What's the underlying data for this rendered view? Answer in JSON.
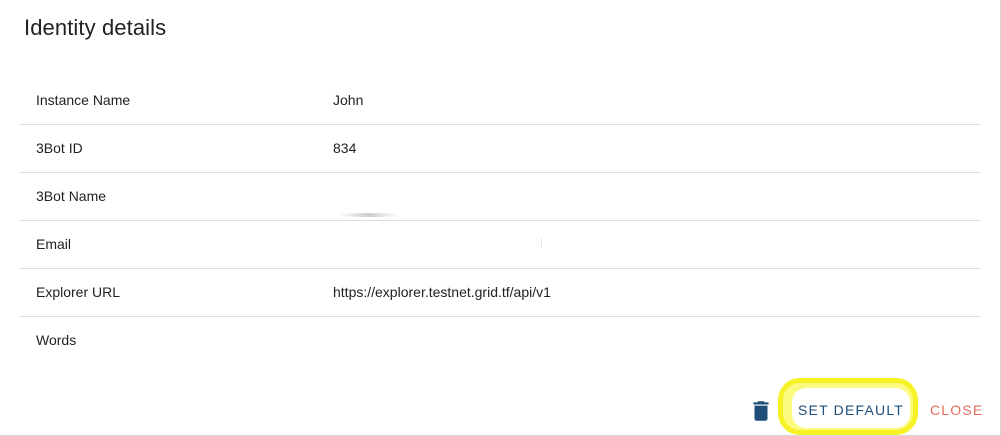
{
  "dialog": {
    "title": "Identity details"
  },
  "details": {
    "rows": [
      {
        "label": "Instance Name",
        "value": "John"
      },
      {
        "label": "3Bot ID",
        "value": "834"
      },
      {
        "label": "3Bot Name",
        "value": ""
      },
      {
        "label": "Email",
        "value": ""
      },
      {
        "label": "Explorer URL",
        "value": "https://explorer.testnet.grid.tf/api/v1"
      },
      {
        "label": "Words",
        "value": ""
      }
    ]
  },
  "actions": {
    "delete_icon": "trash-icon",
    "set_default_label": "SET DEFAULT",
    "close_label": "CLOSE"
  },
  "colors": {
    "primary_text": "#1e4d78",
    "close_text": "#e86b5d",
    "highlight": "#f7f21a",
    "divider": "#e0e0e0"
  }
}
